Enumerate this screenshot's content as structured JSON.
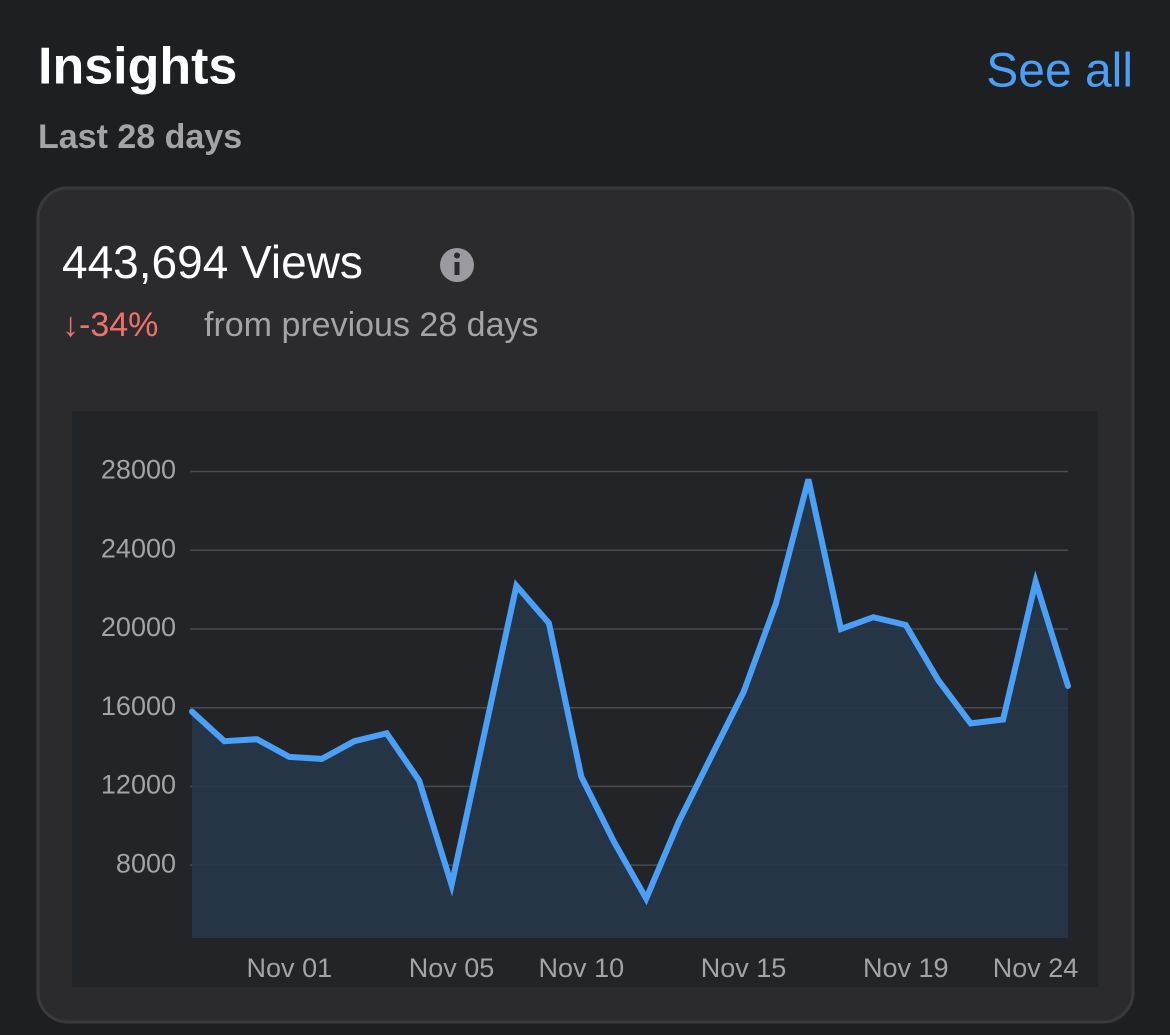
{
  "header": {
    "title": "Insights",
    "subtitle": "Last 28 days",
    "link": "See all"
  },
  "card": {
    "metric": "443,694 Views",
    "change": "↓-34%",
    "change_note": "from previous 28 days"
  },
  "chart_data": {
    "type": "line",
    "area": true,
    "color": "#4a9ff7",
    "categories": [
      null,
      null,
      null,
      "Nov 01",
      null,
      null,
      null,
      null,
      "Nov 05",
      null,
      null,
      null,
      "Nov 10",
      null,
      null,
      null,
      null,
      "Nov 15",
      null,
      null,
      null,
      null,
      "Nov 19",
      null,
      null,
      null,
      "Nov 24",
      null
    ],
    "values": [
      15800,
      14300,
      14400,
      13500,
      13400,
      14300,
      14700,
      12300,
      7000,
      14600,
      22200,
      20300,
      12500,
      9200,
      6300,
      10200,
      13500,
      16800,
      21300,
      27600,
      20000,
      20600,
      20200,
      17400,
      15200,
      15400,
      22400,
      17100
    ],
    "ylim": [
      4300,
      29600
    ],
    "yticks": [
      8000,
      12000,
      16000,
      20000,
      24000,
      28000
    ],
    "grid": true
  }
}
